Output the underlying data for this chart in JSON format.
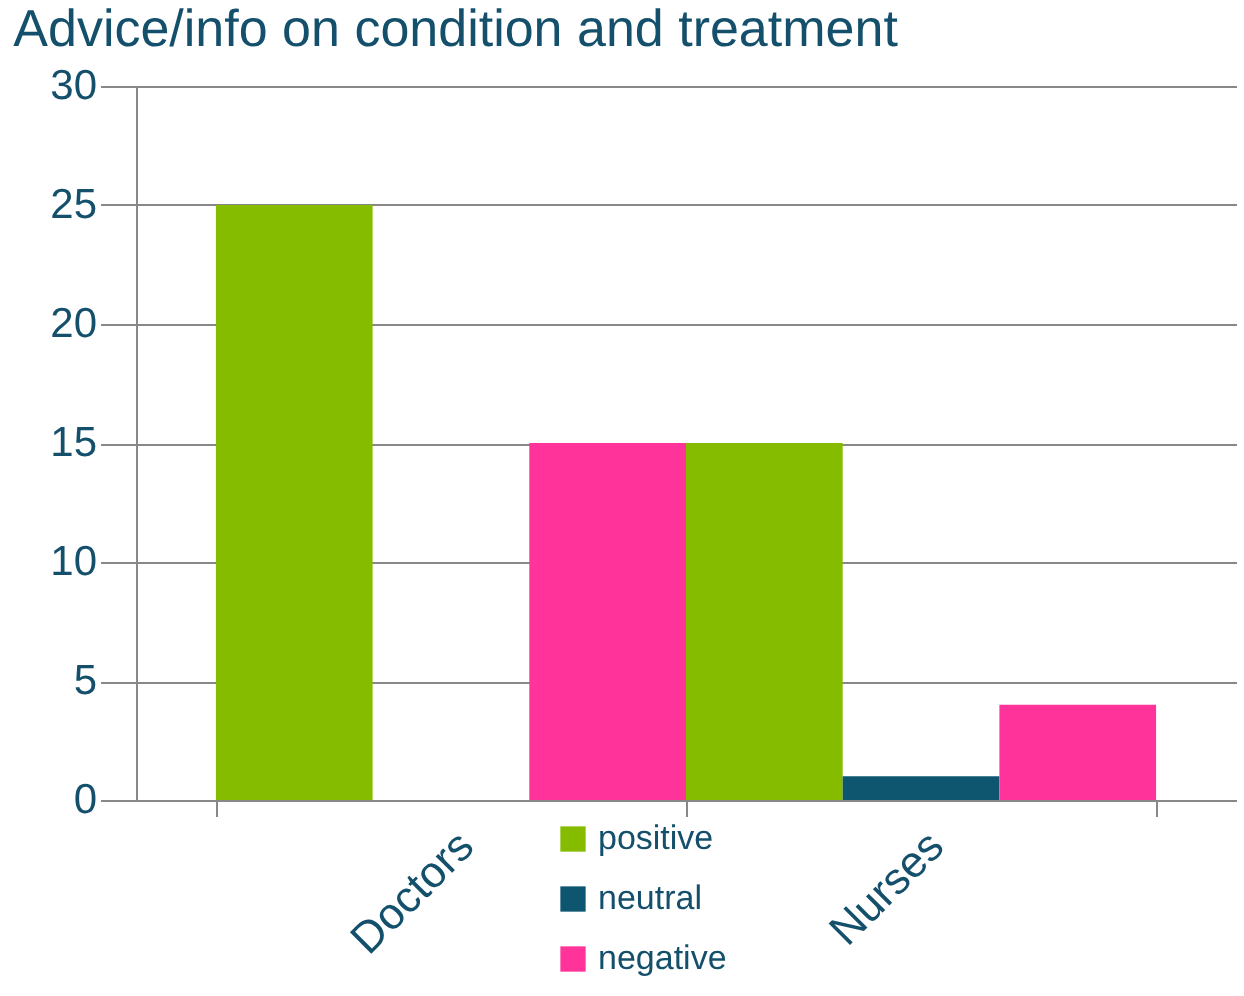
{
  "chart_data": {
    "type": "bar",
    "title": "Advice/info on condition and treatment",
    "categories": [
      "Doctors",
      "Nurses"
    ],
    "series": [
      {
        "name": "positive",
        "color": "#85bc00",
        "values": [
          25,
          15
        ]
      },
      {
        "name": "neutral",
        "color": "#0e5670",
        "values": [
          0,
          1
        ]
      },
      {
        "name": "negative",
        "color": "#ff3399",
        "values": [
          15,
          4
        ]
      }
    ],
    "ylim": [
      0,
      30
    ],
    "yticks": [
      0,
      5,
      10,
      15,
      20,
      25,
      30
    ],
    "grid": "y",
    "legend": "bottom"
  }
}
